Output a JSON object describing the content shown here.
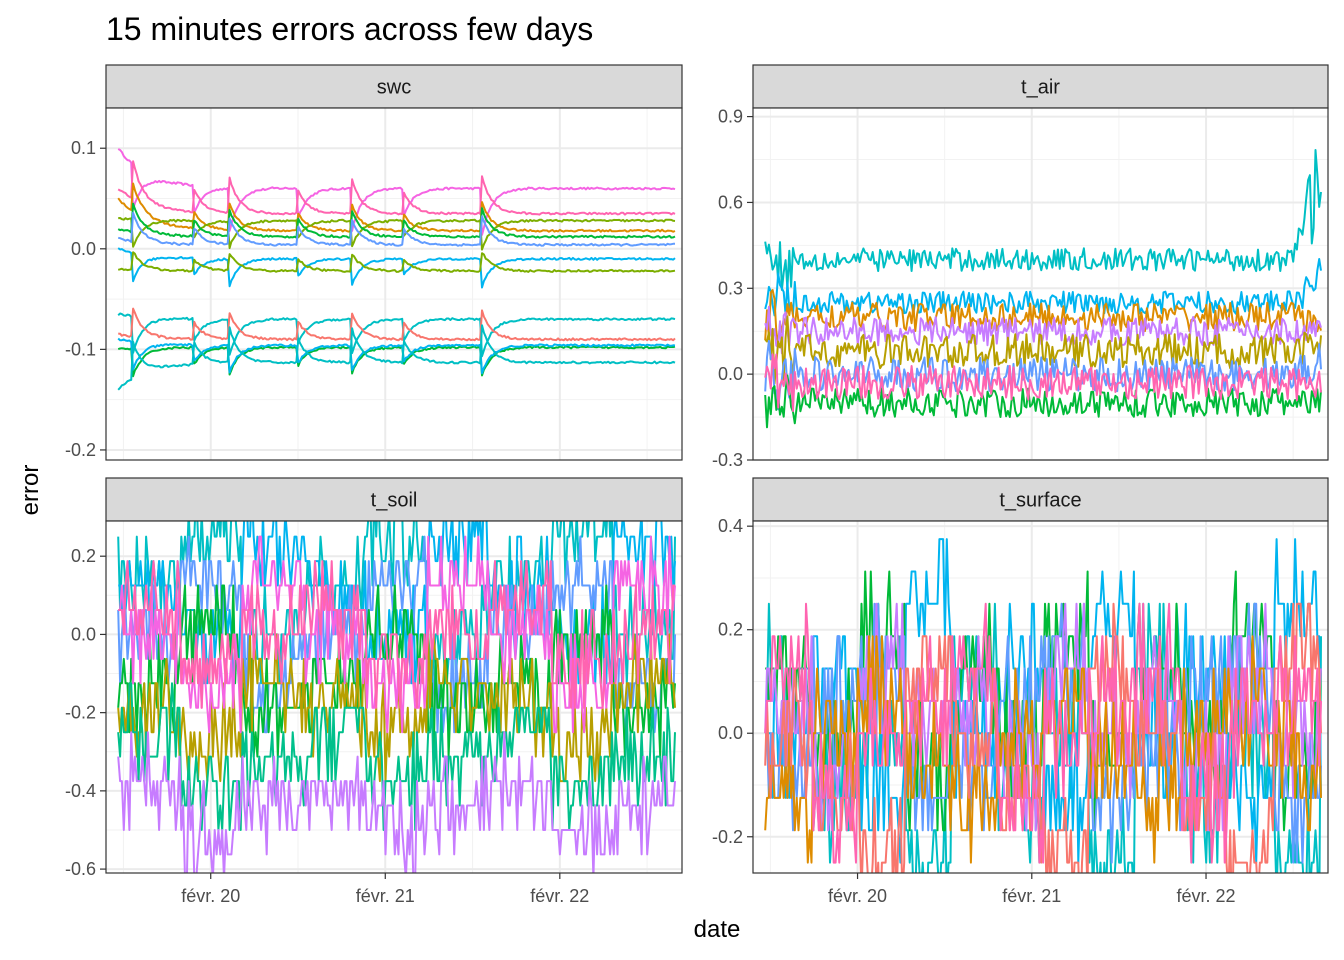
{
  "chart_data": {
    "type": "line",
    "title": "15 minutes errors across few days",
    "xlabel": "date",
    "ylabel": "error",
    "x_tick_labels": [
      "févr. 20",
      "févr. 21",
      "févr. 22"
    ],
    "x_range_days": [
      19.4,
      22.7
    ],
    "grid": true,
    "legend": "none",
    "series_colors": [
      "#F8766D",
      "#DE8C00",
      "#B79F00",
      "#7CAE00",
      "#00BA38",
      "#00C08B",
      "#00BFC4",
      "#00B4F0",
      "#619CFF",
      "#C77CFF",
      "#F564E3",
      "#FF64B0"
    ],
    "panels": [
      {
        "name": "swc",
        "ylim": [
          -0.21,
          0.14
        ],
        "y_ticks": [
          -0.2,
          -0.1,
          0.0,
          0.1
        ],
        "y_tick_labels": [
          "-0.2",
          "-0.1",
          "0.0",
          "0.1"
        ],
        "series": [
          {
            "color": "#F564E3",
            "baseline": 0.06,
            "start": 0.1,
            "spike": 0.05,
            "noise": 0.002
          },
          {
            "color": "#FF64B0",
            "baseline": 0.035,
            "start": 0.06,
            "spike": 0.04,
            "noise": 0.002
          },
          {
            "color": "#DE8C00",
            "baseline": 0.018,
            "start": 0.05,
            "spike": 0.03,
            "noise": 0.002
          },
          {
            "color": "#7CAE00",
            "baseline": 0.028,
            "start": 0.03,
            "spike": 0.03,
            "noise": 0.002
          },
          {
            "color": "#00BA38",
            "baseline": 0.012,
            "start": 0.02,
            "spike": 0.03,
            "noise": 0.002
          },
          {
            "color": "#619CFF",
            "baseline": 0.004,
            "start": 0.01,
            "spike": 0.03,
            "noise": 0.002
          },
          {
            "color": "#00B4F0",
            "baseline": -0.01,
            "start": 0.0,
            "spike": 0.03,
            "noise": 0.002
          },
          {
            "color": "#7CAE00",
            "baseline": -0.022,
            "start": -0.02,
            "spike": 0.02,
            "noise": 0.002
          },
          {
            "color": "#00BFC4",
            "baseline": -0.07,
            "start": -0.065,
            "spike": -0.04,
            "noise": 0.002
          },
          {
            "color": "#F8766D",
            "baseline": -0.09,
            "start": -0.085,
            "spike": -0.03,
            "noise": 0.002
          },
          {
            "color": "#00BA38",
            "baseline": -0.098,
            "start": -0.1,
            "spike": -0.03,
            "noise": 0.002
          },
          {
            "color": "#00B4F0",
            "baseline": -0.096,
            "start": -0.09,
            "spike": -0.03,
            "noise": 0.002
          },
          {
            "color": "#00BFC4",
            "baseline": -0.113,
            "start": -0.14,
            "spike": -0.04,
            "noise": 0.002
          }
        ]
      },
      {
        "name": "t_air",
        "ylim": [
          -0.3,
          0.93
        ],
        "y_ticks": [
          -0.3,
          0.0,
          0.3,
          0.6,
          0.9
        ],
        "y_tick_labels": [
          "-0.3",
          "0.0",
          "0.3",
          "0.6",
          "0.9"
        ],
        "series": [
          {
            "color": "#00BFC4",
            "baseline": 0.4,
            "amp": 0.04,
            "end_spike": 0.87
          },
          {
            "color": "#00B4F0",
            "baseline": 0.25,
            "amp": 0.04,
            "end_spike": 0.4
          },
          {
            "color": "#DE8C00",
            "baseline": 0.2,
            "amp": 0.05,
            "end_spike": 0.18
          },
          {
            "color": "#C77CFF",
            "baseline": 0.15,
            "amp": 0.05,
            "end_spike": 0.15
          },
          {
            "color": "#B79F00",
            "baseline": 0.08,
            "amp": 0.06,
            "end_spike": 0.1
          },
          {
            "color": "#619CFF",
            "baseline": 0.0,
            "amp": 0.06,
            "end_spike": 0.05
          },
          {
            "color": "#00BA38",
            "baseline": -0.1,
            "amp": 0.05,
            "end_spike": -0.1
          },
          {
            "color": "#FF64B0",
            "baseline": -0.03,
            "amp": 0.06,
            "end_spike": -0.05
          }
        ]
      },
      {
        "name": "t_soil",
        "ylim": [
          -0.61,
          0.29
        ],
        "y_ticks": [
          -0.6,
          -0.4,
          -0.2,
          0.0,
          0.2
        ],
        "y_tick_labels": [
          "-0.6",
          "-0.4",
          "-0.2",
          "0.0",
          "0.2"
        ],
        "series": [
          {
            "color": "#00BFC4",
            "levels": [
              0.125,
              0.25,
              0.0
            ]
          },
          {
            "color": "#00B4F0",
            "levels": [
              0.125,
              0.0,
              0.25
            ]
          },
          {
            "color": "#619CFF",
            "levels": [
              0.0,
              0.125,
              -0.125
            ]
          },
          {
            "color": "#00BA38",
            "levels": [
              -0.125,
              0.0,
              -0.1875
            ]
          },
          {
            "color": "#B79F00",
            "levels": [
              -0.1875,
              -0.25,
              -0.125
            ]
          },
          {
            "color": "#00C08B",
            "levels": [
              -0.25,
              -0.375,
              -0.3125
            ]
          },
          {
            "color": "#F564E3",
            "levels": [
              0.0,
              -0.125,
              0.125
            ]
          },
          {
            "color": "#FF64B0",
            "levels": [
              0.0625,
              -0.0625,
              0.0
            ]
          },
          {
            "color": "#C77CFF",
            "levels": [
              -0.375,
              -0.5,
              -0.4375
            ]
          }
        ]
      },
      {
        "name": "t_surface",
        "ylim": [
          -0.27,
          0.41
        ],
        "y_ticks": [
          -0.2,
          0.0,
          0.2,
          0.4
        ],
        "y_tick_labels": [
          "-0.2",
          "0.0",
          "0.2",
          "0.4"
        ],
        "series": [
          {
            "color": "#00BFC4",
            "levels": [
              0.125,
              -0.125,
              0.0,
              -0.25
            ]
          },
          {
            "color": "#00B4F0",
            "levels": [
              0.0,
              0.125,
              -0.125,
              0.25
            ]
          },
          {
            "color": "#00BA38",
            "levels": [
              0.125,
              0.0,
              0.1875,
              -0.0625
            ]
          },
          {
            "color": "#619CFF",
            "levels": [
              -0.0625,
              0.0625,
              0.125,
              -0.125
            ]
          },
          {
            "color": "#C77CFF",
            "levels": [
              0.0625,
              -0.0625,
              0.125,
              0.0
            ]
          },
          {
            "color": "#DE8C00",
            "levels": [
              -0.125,
              0.0,
              0.0625,
              -0.0625
            ]
          },
          {
            "color": "#F8766D",
            "levels": [
              0.0,
              -0.125,
              -0.25,
              0.125
            ]
          },
          {
            "color": "#FF64B0",
            "levels": [
              0.125,
              -0.125,
              0.0,
              0.0625
            ]
          }
        ]
      }
    ]
  }
}
